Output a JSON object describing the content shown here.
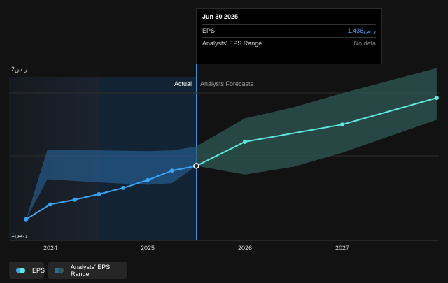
{
  "colors": {
    "background": "#121212",
    "actual_shade": "#13324f",
    "eps_line": "#3aa3f5",
    "forecast_line": "#5ee8e0",
    "range_fill_actual": "#2a6ca6",
    "range_fill_forecast": "#2f5a55",
    "gridline": "#2d2d2d"
  },
  "tooltip": {
    "title": "Jun 30 2025",
    "eps_label": "EPS",
    "eps_value": "ر.س1.436",
    "range_label": "Analysts' EPS Range",
    "range_value": "No data"
  },
  "sections": {
    "actual": "Actual",
    "forecast": "Analysts Forecasts"
  },
  "legend": {
    "eps": "EPS",
    "range": "Analysts' EPS Range"
  },
  "chart_data": {
    "type": "line",
    "x_ticks": [
      "2024",
      "2025",
      "2026",
      "2027"
    ],
    "y_ticks": [
      "ر.س2",
      "ر.س1"
    ],
    "ylim": [
      1,
      2
    ],
    "xlim": [
      2023.75,
      2027.97
    ],
    "divider_x": 2025.5,
    "series": [
      {
        "name": "EPS",
        "x": [
          2023.75,
          2024.0,
          2024.25,
          2024.5,
          2024.75,
          2025.0,
          2025.25,
          2025.5
        ],
        "y": [
          1.095,
          1.19,
          1.22,
          1.255,
          1.295,
          1.345,
          1.405,
          1.436
        ]
      },
      {
        "name": "Analysts Forecasts",
        "x": [
          2025.5,
          2026.0,
          2027.0,
          2027.97
        ],
        "y": [
          1.436,
          1.59,
          1.7,
          1.87
        ]
      }
    ],
    "range_band": {
      "name": "Analysts' EPS Range",
      "x": [
        2023.75,
        2023.97,
        2024.5,
        2025.0,
        2025.25,
        2025.5,
        2026.0,
        2026.5,
        2027.0,
        2027.97
      ],
      "low": [
        1.095,
        1.35,
        1.33,
        1.315,
        1.325,
        1.436,
        1.38,
        1.43,
        1.52,
        1.73
      ],
      "high": [
        1.095,
        1.54,
        1.535,
        1.53,
        1.535,
        1.56,
        1.74,
        1.81,
        1.9,
        2.06
      ]
    }
  }
}
